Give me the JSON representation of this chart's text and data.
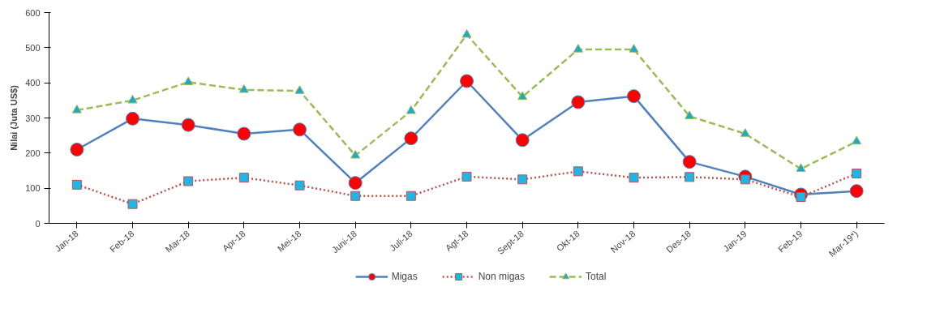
{
  "chart_data": {
    "type": "line",
    "ylabel": "Nilai (Juta US$)",
    "categories": [
      "Jan-18",
      "Feb-18",
      "Mar-18",
      "Apr-18",
      "Mei-18",
      "Juni-18",
      "Juli-18",
      "Agt-18",
      "Sept-18",
      "Okt-18",
      "Nov-18",
      "Des-18",
      "Jan-19",
      "Feb-19",
      "Mar-19*)"
    ],
    "series": [
      {
        "name": "Migas",
        "color": "#4f81bd",
        "marker": "circle",
        "line_style": "solid",
        "values": [
          210,
          298,
          280,
          255,
          267,
          115,
          242,
          405,
          237,
          345,
          362,
          175,
          133,
          82,
          92
        ]
      },
      {
        "name": "Non migas",
        "color": "#c0504d",
        "marker": "square",
        "line_style": "dotted",
        "values": [
          110,
          55,
          120,
          130,
          108,
          78,
          78,
          133,
          125,
          148,
          130,
          132,
          125,
          75,
          142
        ]
      },
      {
        "name": "Total",
        "color": "#9bbb59",
        "marker": "triangle",
        "line_style": "dashed",
        "values": [
          322,
          350,
          402,
          380,
          377,
          193,
          320,
          537,
          360,
          495,
          495,
          305,
          255,
          155,
          233
        ]
      }
    ],
    "ylim": [
      0,
      600
    ],
    "yticks": [
      0,
      100,
      200,
      300,
      400,
      500,
      600
    ],
    "grid": false,
    "legend": "bottom"
  }
}
